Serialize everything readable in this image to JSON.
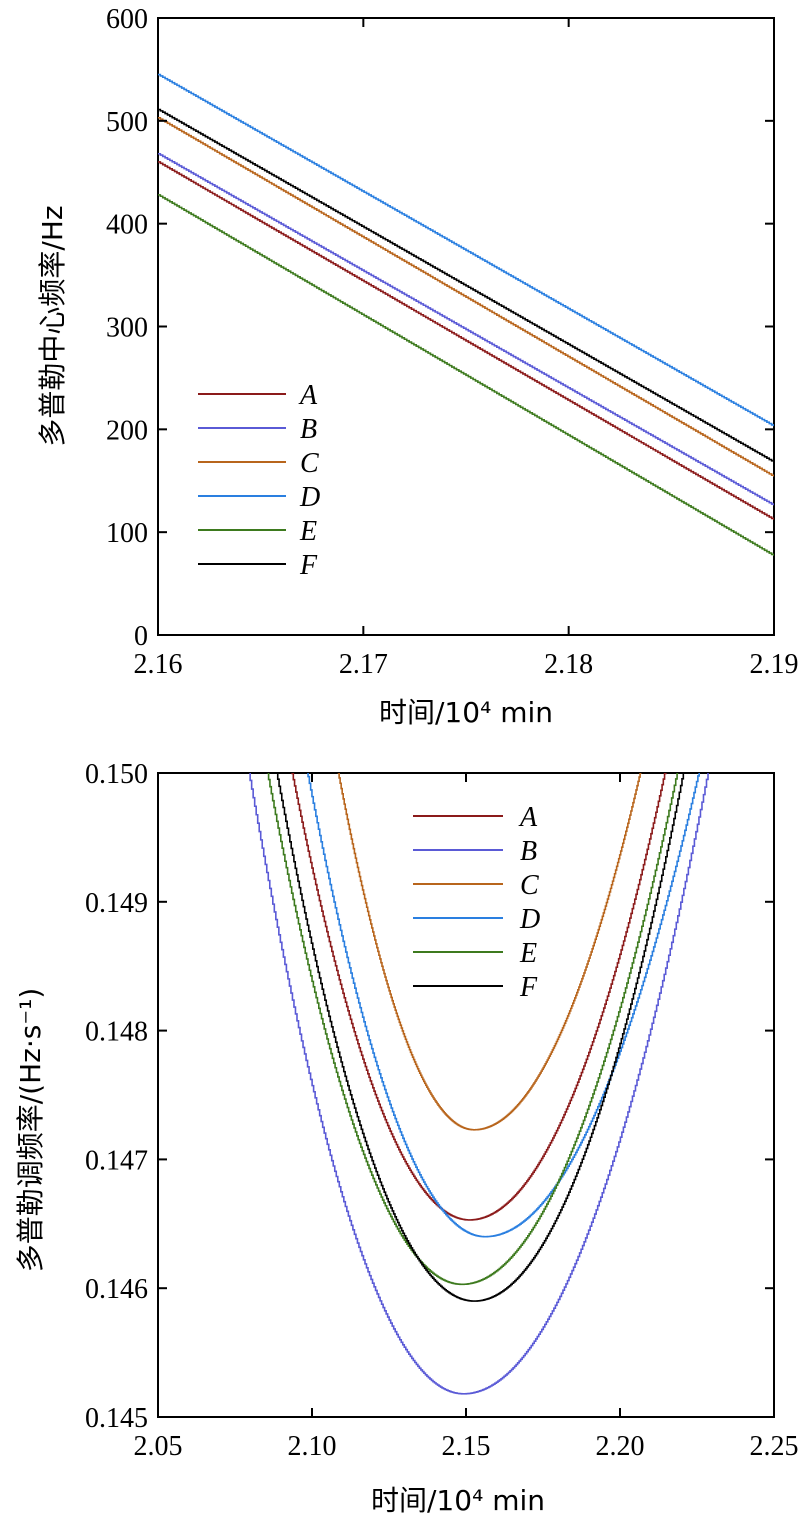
{
  "chart_data": [
    {
      "type": "line",
      "xlabel": "时间/10⁴ min",
      "ylabel": "多普勒中心频率/Hz",
      "xlim": [
        2.16,
        2.19
      ],
      "ylim": [
        0,
        600
      ],
      "x_ticks": [
        "2.16",
        "2.17",
        "2.18",
        "2.19"
      ],
      "y_ticks": [
        "0",
        "100",
        "200",
        "300",
        "400",
        "500",
        "600"
      ],
      "legend_position": "left-center",
      "series": [
        {
          "name": "A",
          "color": "#8b1a1a",
          "x": [
            2.16,
            2.19
          ],
          "values": [
            460,
            112
          ]
        },
        {
          "name": "B",
          "color": "#5a5ad6",
          "x": [
            2.16,
            2.19
          ],
          "values": [
            468,
            126
          ]
        },
        {
          "name": "C",
          "color": "#b8651c",
          "x": [
            2.16,
            2.19
          ],
          "values": [
            503,
            154
          ]
        },
        {
          "name": "D",
          "color": "#2a7fe0",
          "x": [
            2.16,
            2.19
          ],
          "values": [
            545,
            203
          ]
        },
        {
          "name": "E",
          "color": "#3d7a1e",
          "x": [
            2.16,
            2.19
          ],
          "values": [
            428,
            77
          ]
        },
        {
          "name": "F",
          "color": "#000000",
          "x": [
            2.16,
            2.19
          ],
          "values": [
            511,
            168
          ]
        }
      ]
    },
    {
      "type": "line",
      "xlabel": "时间/10⁴ min",
      "ylabel": "多普勒调频率/(Hz·s⁻¹)",
      "xlim": [
        2.05,
        2.25
      ],
      "ylim": [
        0.145,
        0.15
      ],
      "x_ticks": [
        "2.05",
        "2.10",
        "2.15",
        "2.20",
        "2.25"
      ],
      "y_ticks": [
        "0.145",
        "0.146",
        "0.147",
        "0.148",
        "0.149",
        "0.150"
      ],
      "legend_position": "top-center",
      "series": [
        {
          "name": "A",
          "color": "#8b1a1a",
          "vertex_x": 2.151,
          "min_value": 0.14653,
          "x_left_at_top": 2.0935,
          "x_right_at_top": 2.2145
        },
        {
          "name": "B",
          "color": "#5a5ad6",
          "vertex_x": 2.149,
          "min_value": 0.14518,
          "x_left_at_top": 2.0795,
          "x_right_at_top": 2.2285
        },
        {
          "name": "C",
          "color": "#b8651c",
          "vertex_x": 2.1525,
          "min_value": 0.14723,
          "x_left_at_top": 2.1085,
          "x_right_at_top": 2.2065
        },
        {
          "name": "D",
          "color": "#2a7fe0",
          "vertex_x": 2.156,
          "min_value": 0.1464,
          "x_left_at_top": 2.0985,
          "x_right_at_top": 2.2255
        },
        {
          "name": "E",
          "color": "#3d7a1e",
          "vertex_x": 2.1485,
          "min_value": 0.14603,
          "x_left_at_top": 2.0855,
          "x_right_at_top": 2.2185
        },
        {
          "name": "F",
          "color": "#000000",
          "vertex_x": 2.1525,
          "min_value": 0.1459,
          "x_left_at_top": 2.0885,
          "x_right_at_top": 2.2205
        }
      ]
    }
  ]
}
